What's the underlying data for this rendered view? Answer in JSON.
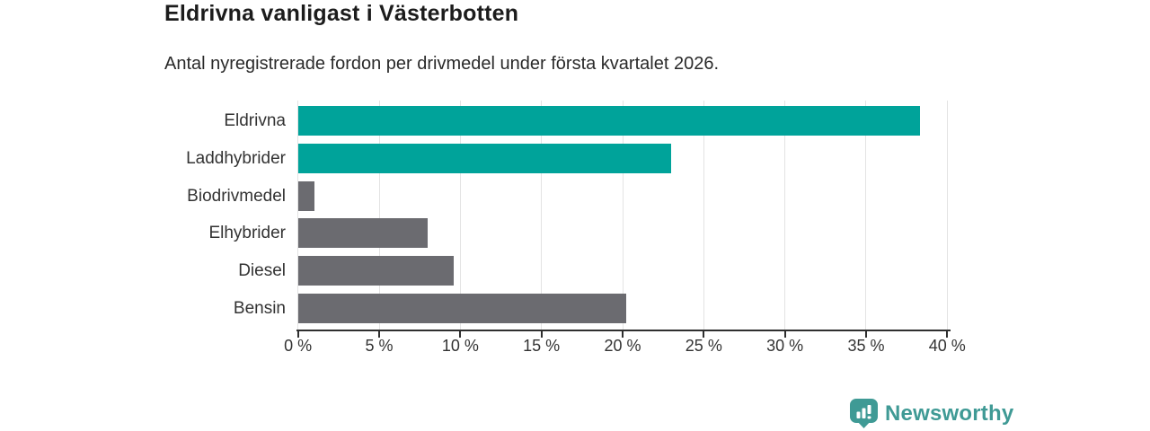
{
  "header": {
    "title": "Eldrivna vanligast i Västerbotten",
    "subtitle": "Antal nyregistrerade fordon per drivmedel under första kvartalet 2026."
  },
  "chart_data": {
    "type": "bar",
    "orientation": "horizontal",
    "title": "Eldrivna vanligast i Västerbotten",
    "subtitle": "Antal nyregistrerade fordon per drivmedel under första kvartalet 2026.",
    "categories": [
      "Eldrivna",
      "Laddhybrider",
      "Biodrivmedel",
      "Elhybrider",
      "Diesel",
      "Bensin"
    ],
    "values": [
      38.3,
      23.0,
      1.0,
      8.0,
      9.6,
      20.2
    ],
    "unit": "%",
    "xlabel": "",
    "ylabel": "",
    "xlim": [
      0,
      40
    ],
    "tick_step": 5,
    "tick_labels": [
      "0 %",
      "5 %",
      "10 %",
      "15 %",
      "20 %",
      "25 %",
      "30 %",
      "35 %",
      "40 %"
    ],
    "grid": true,
    "legend": "none",
    "colors": {
      "highlight": "#00a39a",
      "default": "#6b6b70",
      "highlighted_categories": [
        "Eldrivna",
        "Laddhybrider"
      ]
    },
    "bar_colors": [
      "#00a39a",
      "#00a39a",
      "#6b6b70",
      "#6b6b70",
      "#6b6b70",
      "#6b6b70"
    ]
  },
  "footer": {
    "brand": "Newsworthy",
    "brand_color": "#3f9a95",
    "logo_icon": "bar-chart-pin-icon"
  }
}
